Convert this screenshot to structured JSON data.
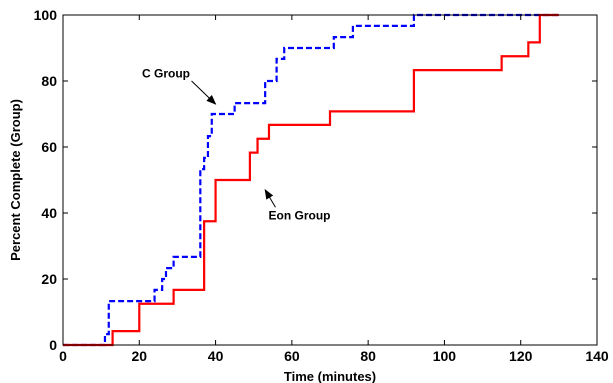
{
  "chart_data": {
    "type": "line",
    "title": "",
    "xlabel": "Time (minutes)",
    "ylabel": "Percent Complete (Group)",
    "xlim": [
      0,
      140
    ],
    "ylim": [
      0,
      100
    ],
    "xticks": [
      "0",
      "20",
      "40",
      "60",
      "80",
      "100",
      "120",
      "140"
    ],
    "yticks": [
      "0",
      "20",
      "40",
      "60",
      "80",
      "100"
    ],
    "grid": false,
    "legend": "none",
    "series": [
      {
        "key": "c_group",
        "color": "#0000ff",
        "line_style": "dashed",
        "x": [
          0,
          11,
          11,
          12,
          12,
          24,
          24,
          26,
          26,
          27,
          27,
          29,
          29,
          36,
          36,
          37,
          37,
          38,
          38,
          39,
          39,
          45,
          45,
          46,
          46,
          53,
          53,
          56,
          56,
          58,
          58,
          71,
          71,
          76,
          76,
          86,
          86,
          92,
          92,
          100,
          100,
          130
        ],
        "y": [
          0,
          0,
          3.3,
          3.3,
          13.3,
          13.3,
          16.7,
          16.7,
          20,
          20,
          23.3,
          23.3,
          26.7,
          26.7,
          53.3,
          53.3,
          56.7,
          56.7,
          63.3,
          63.3,
          70,
          70,
          73.3,
          73.3,
          73.3,
          73.3,
          80,
          80,
          86.7,
          86.7,
          90,
          90,
          93.3,
          93.3,
          96.7,
          96.7,
          96.7,
          96.7,
          100,
          100,
          100,
          100
        ]
      },
      {
        "key": "eon_group",
        "color": "#ff0000",
        "line_style": "solid",
        "x": [
          0,
          13,
          13,
          20,
          20,
          29,
          29,
          37,
          37,
          40,
          40,
          49,
          49,
          51,
          51,
          54,
          54,
          70,
          70,
          92,
          92,
          115,
          115,
          122,
          122,
          125,
          125,
          130
        ],
        "y": [
          0,
          0,
          4.2,
          4.2,
          12.5,
          12.5,
          16.7,
          16.7,
          37.5,
          37.5,
          50,
          50,
          58.3,
          58.3,
          62.5,
          62.5,
          66.7,
          66.7,
          70.8,
          70.8,
          83.3,
          83.3,
          87.5,
          87.5,
          91.7,
          91.7,
          100,
          100
        ]
      }
    ],
    "annotations": [
      {
        "key": "c_group",
        "text": "C Group",
        "text_at": [
          27,
          81
        ],
        "arrow_to": [
          40,
          73
        ]
      },
      {
        "key": "eon_group",
        "text": "Eon Group",
        "text_at": [
          62,
          38
        ],
        "arrow_to": [
          53,
          47
        ]
      }
    ]
  }
}
